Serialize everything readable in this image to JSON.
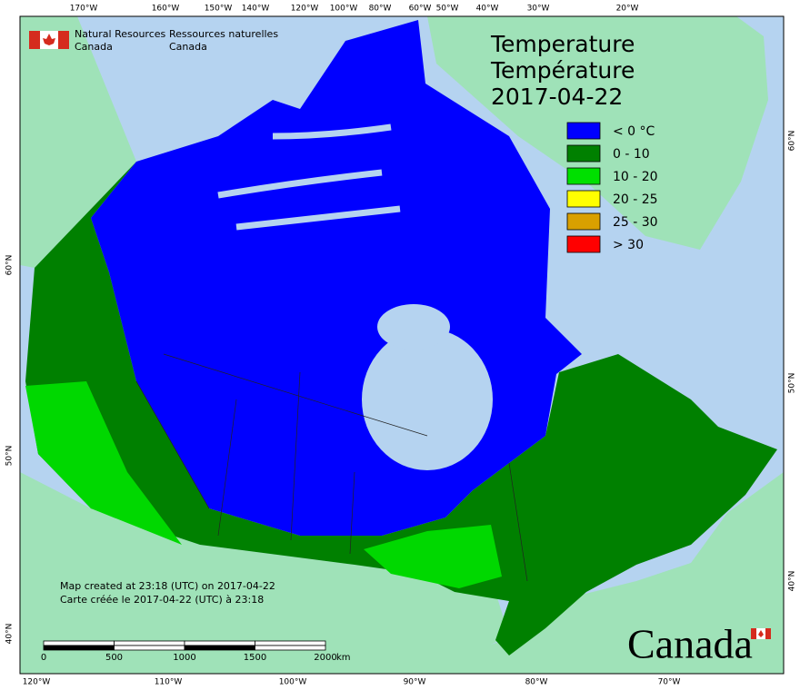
{
  "map": {
    "top_longitudes": [
      "170°W",
      "160°W",
      "150°W",
      "140°W",
      "120°W",
      "100°W",
      "80°W",
      "60°W",
      "50°W",
      "40°W",
      "30°W",
      "20°W"
    ],
    "bottom_longitudes": [
      "120°W",
      "110°W",
      "100°W",
      "90°W",
      "80°W",
      "70°W"
    ],
    "left_latitudes": [
      "60°N",
      "50°N",
      "40°N"
    ],
    "right_latitudes": [
      "60°N",
      "50°N",
      "40°N"
    ],
    "header": {
      "english": [
        "Natural Resources",
        "Canada"
      ],
      "french": [
        "Ressources naturelles",
        "Canada"
      ]
    },
    "title": [
      "Temperature",
      "Température",
      "2017-04-22"
    ],
    "legend": [
      {
        "label": "< 0 °C",
        "color": "#0000ff"
      },
      {
        "label": "0 - 10",
        "color": "#008000"
      },
      {
        "label": "10 - 20",
        "color": "#00e000"
      },
      {
        "label": "20 - 25",
        "color": "#ffff00"
      },
      {
        "label": "25 - 30",
        "color": "#d9a000"
      },
      {
        "label": "> 30",
        "color": "#ff0000"
      }
    ],
    "notes": [
      "Map created at 23:18 (UTC) on 2017-04-22",
      "Carte créée le 2017-04-22 (UTC) à 23:18"
    ],
    "scale_bar": {
      "labels": [
        "0",
        "500",
        "1000",
        "1500",
        "2000"
      ],
      "unit": "km"
    },
    "wordmark": "Canada"
  }
}
